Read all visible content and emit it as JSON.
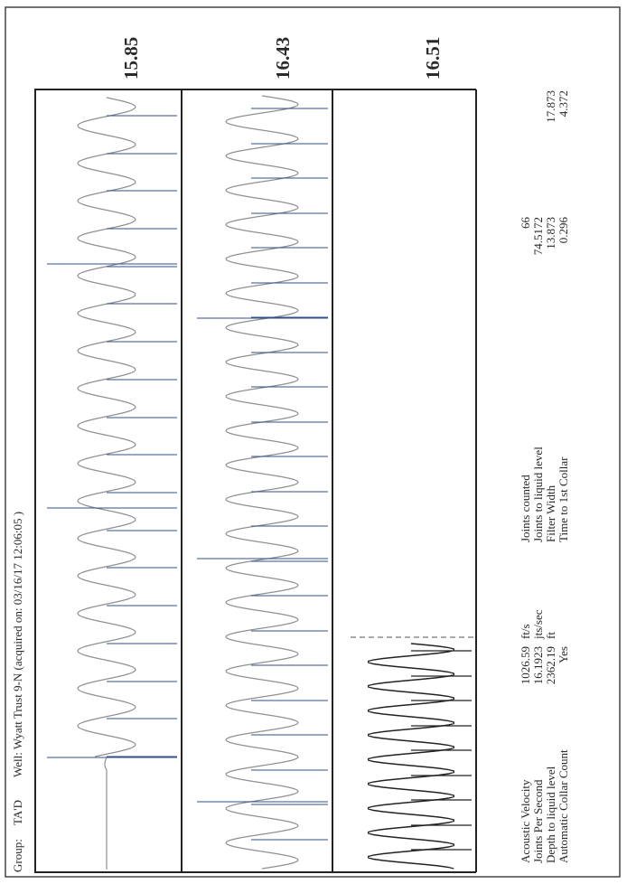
{
  "header": {
    "group_label": "Group:",
    "group_value": "TA'D",
    "well_text": "Well: Wyatt Trust 9-N (acquired on: 03/16/17 12:06:05 )"
  },
  "panels": [
    {
      "label": "15.85"
    },
    {
      "label": "16.43"
    },
    {
      "label": "16.51"
    }
  ],
  "params_left": [
    {
      "label": "Acoustic Velocity",
      "value": "1026.59",
      "unit": "ft/s"
    },
    {
      "label": "Joints Per Second",
      "value": "16.1923",
      "unit": "jts/sec"
    },
    {
      "label": "Depth to liquid level",
      "value": "2362.19",
      "unit": "ft"
    },
    {
      "label": "Automatic Collar Count",
      "value": "Yes",
      "unit": ""
    }
  ],
  "params_right": [
    {
      "label": "Joints counted",
      "value": "66",
      "extra": ""
    },
    {
      "label": "Joints to liquid level",
      "value": "74.5172",
      "extra": ""
    },
    {
      "label": "Filter Width",
      "value": "13.873",
      "extra": "17.873"
    },
    {
      "label": "Time to 1st Collar",
      "value": "0.296",
      "extra": "4.372"
    }
  ],
  "colors": {
    "waveform": "#909090",
    "collar_markers": "#2f4f8a",
    "border": "#222222",
    "liquid_waveform": "#222222"
  }
}
